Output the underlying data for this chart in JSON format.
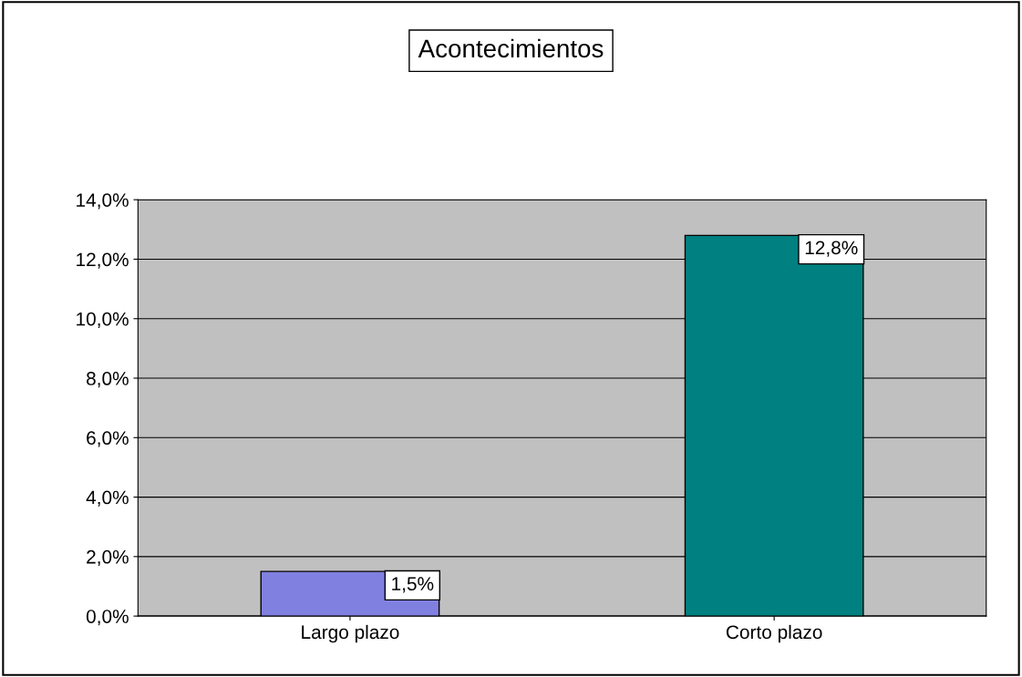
{
  "chart_data": {
    "type": "bar",
    "title": "Acontecimientos",
    "categories": [
      "Largo plazo",
      "Corto plazo"
    ],
    "values": [
      1.5,
      12.8
    ],
    "colors": [
      "#8080e0",
      "#008080"
    ],
    "value_labels": [
      "1,5%",
      "12,8%"
    ],
    "ylim": [
      0,
      14
    ],
    "yticks": [
      {
        "value": 0,
        "label": "0,0%"
      },
      {
        "value": 2,
        "label": "2,0%"
      },
      {
        "value": 4,
        "label": "4,0%"
      },
      {
        "value": 6,
        "label": "6,0%"
      },
      {
        "value": 8,
        "label": "8,0%"
      },
      {
        "value": 10,
        "label": "10,0%"
      },
      {
        "value": 12,
        "label": "12,0%"
      },
      {
        "value": 14,
        "label": "14,0%"
      }
    ],
    "grid": "y",
    "legend": false
  }
}
